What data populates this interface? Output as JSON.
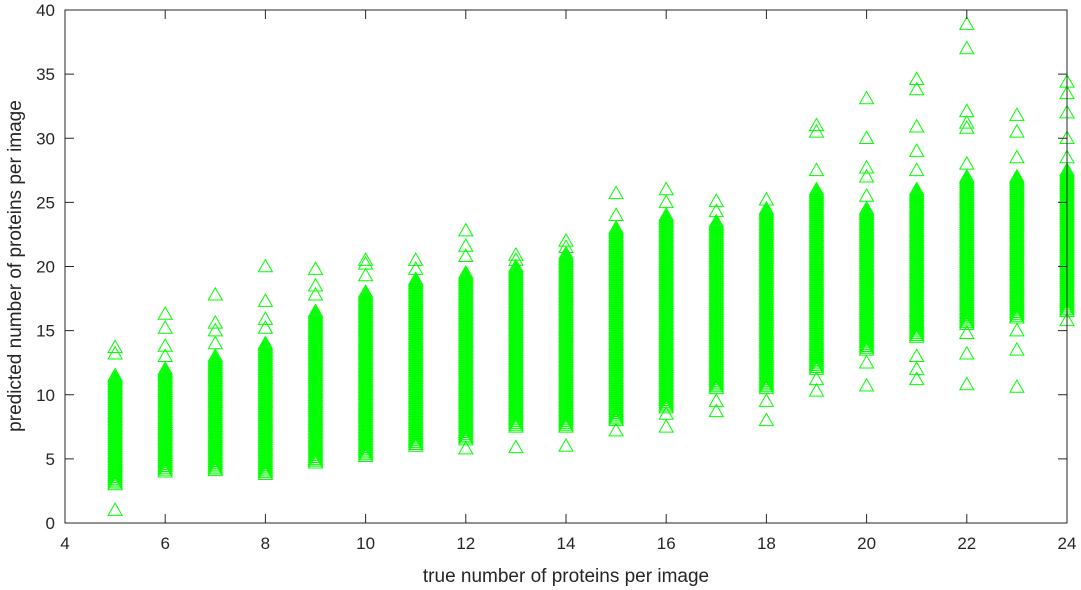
{
  "chart_data": {
    "type": "scatter",
    "title": "",
    "xlabel": "true number of proteins per image",
    "ylabel": "predicted number of proteins per image",
    "xlim": [
      4,
      24
    ],
    "ylim": [
      0,
      40
    ],
    "xticks": [
      "4",
      "6",
      "8",
      "10",
      "12",
      "14",
      "16",
      "18",
      "20",
      "22",
      "24"
    ],
    "yticks": [
      "0",
      "5",
      "10",
      "15",
      "20",
      "25",
      "30",
      "35",
      "40"
    ],
    "grid": false,
    "legend": "none",
    "marker": "triangle",
    "marker_color": "#00ff00",
    "groups": [
      {
        "x": 5,
        "dense": [
          3.0,
          11.5
        ],
        "outliers": [
          1.0,
          13.2,
          13.7
        ]
      },
      {
        "x": 6,
        "dense": [
          4.0,
          12.0
        ],
        "outliers": [
          13.0,
          13.8,
          15.2,
          16.3
        ]
      },
      {
        "x": 7,
        "dense": [
          4.1,
          13.0
        ],
        "outliers": [
          14.0,
          15.0,
          15.6,
          17.8
        ]
      },
      {
        "x": 8,
        "dense": [
          3.8,
          14.0
        ],
        "outliers": [
          15.2,
          15.9,
          17.3,
          20.0
        ]
      },
      {
        "x": 9,
        "dense": [
          4.7,
          16.5
        ],
        "outliers": [
          17.8,
          18.5,
          19.8
        ]
      },
      {
        "x": 10,
        "dense": [
          5.2,
          18.0
        ],
        "outliers": [
          19.3,
          20.2,
          20.5
        ]
      },
      {
        "x": 11,
        "dense": [
          6.0,
          19.0
        ],
        "outliers": [
          19.8,
          20.5
        ]
      },
      {
        "x": 12,
        "dense": [
          6.5,
          19.5
        ],
        "outliers": [
          5.8,
          20.8,
          21.6,
          22.8
        ]
      },
      {
        "x": 13,
        "dense": [
          7.5,
          20.0
        ],
        "outliers": [
          5.9,
          20.5,
          20.9
        ]
      },
      {
        "x": 14,
        "dense": [
          7.5,
          21.0
        ],
        "outliers": [
          6.0,
          21.5,
          22.0
        ]
      },
      {
        "x": 15,
        "dense": [
          8.0,
          23.0
        ],
        "outliers": [
          7.2,
          24.0,
          25.7
        ]
      },
      {
        "x": 16,
        "dense": [
          9.0,
          24.0
        ],
        "outliers": [
          7.5,
          8.5,
          25.0,
          26.0
        ]
      },
      {
        "x": 17,
        "dense": [
          10.5,
          23.5
        ],
        "outliers": [
          8.7,
          9.5,
          24.3,
          25.1
        ]
      },
      {
        "x": 18,
        "dense": [
          10.5,
          24.5
        ],
        "outliers": [
          8.0,
          9.5,
          25.2
        ]
      },
      {
        "x": 19,
        "dense": [
          12.0,
          26.0
        ],
        "outliers": [
          10.3,
          11.2,
          27.5,
          30.5,
          31.0
        ]
      },
      {
        "x": 20,
        "dense": [
          13.5,
          24.5
        ],
        "outliers": [
          10.7,
          12.5,
          25.5,
          27.0,
          27.7,
          30.0,
          33.1
        ]
      },
      {
        "x": 21,
        "dense": [
          14.5,
          26.0
        ],
        "outliers": [
          11.2,
          12.0,
          13.0,
          27.5,
          29.0,
          30.9,
          33.8,
          34.6
        ]
      },
      {
        "x": 22,
        "dense": [
          15.5,
          27.0
        ],
        "outliers": [
          10.8,
          13.2,
          14.8,
          28.0,
          30.8,
          31.2,
          32.1,
          37.0,
          38.9
        ]
      },
      {
        "x": 23,
        "dense": [
          16.0,
          27.0
        ],
        "outliers": [
          10.6,
          13.5,
          15.0,
          28.5,
          30.5,
          31.8
        ]
      },
      {
        "x": 24,
        "dense": [
          16.5,
          27.5
        ],
        "outliers": [
          15.8,
          28.5,
          30.0,
          32.0,
          33.5,
          34.4
        ]
      }
    ]
  }
}
